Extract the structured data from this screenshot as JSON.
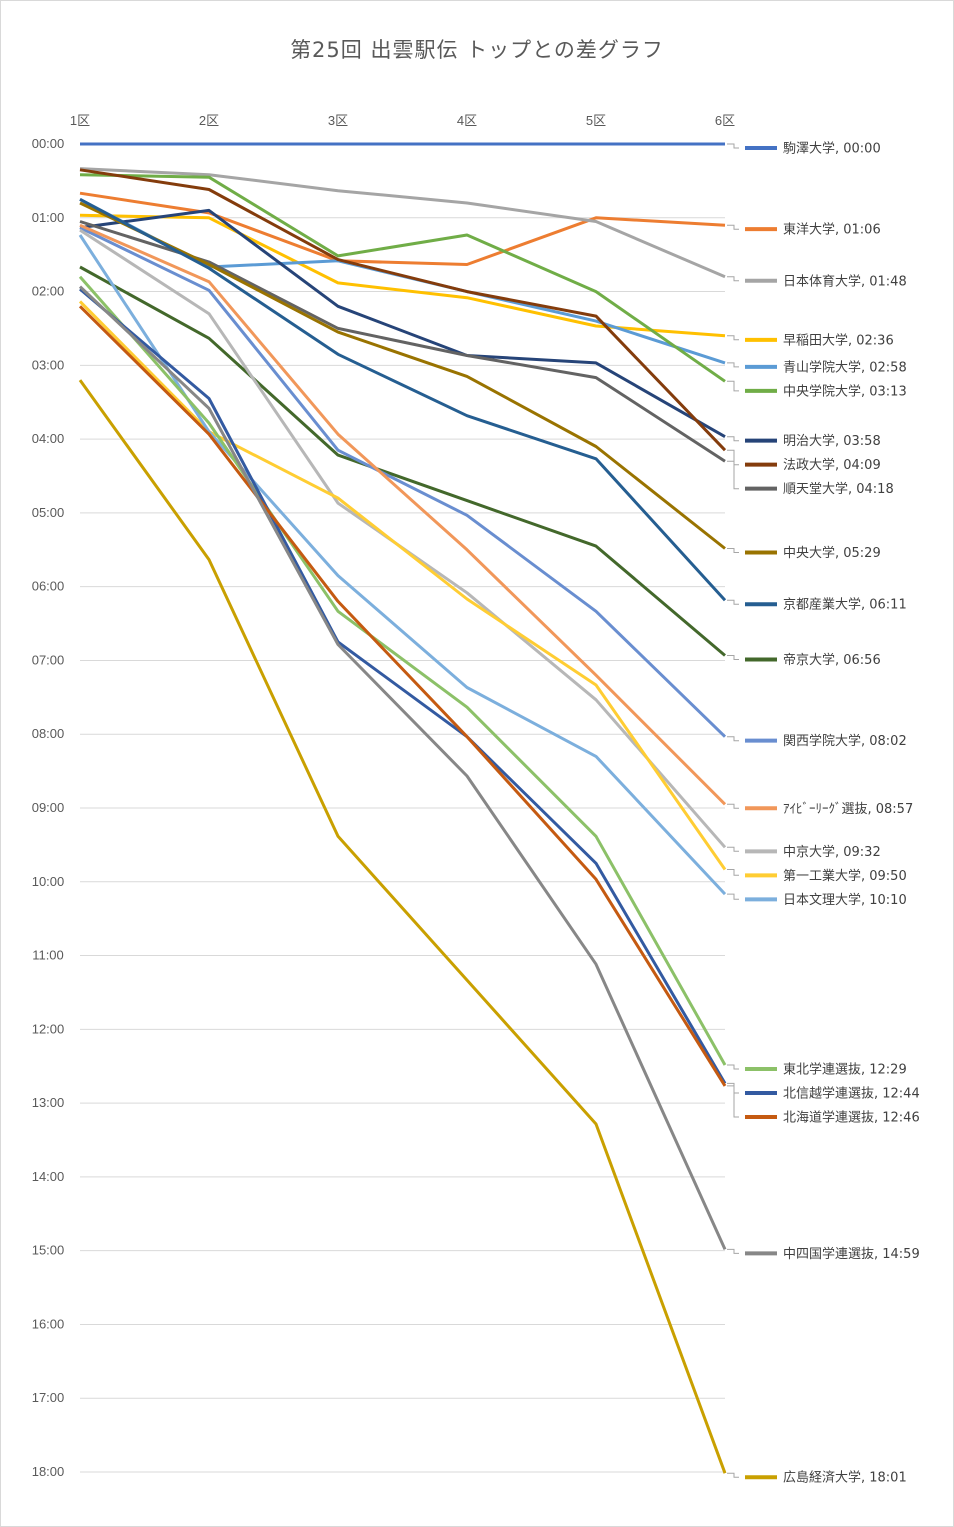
{
  "chart_data": {
    "type": "line",
    "title": "第25回  出雲駅伝  トップとの差グラフ",
    "categories": [
      "1区",
      "2区",
      "3区",
      "4区",
      "5区",
      "6区"
    ],
    "y_ticks": [
      "00:00",
      "01:00",
      "02:00",
      "03:00",
      "04:00",
      "05:00",
      "06:00",
      "07:00",
      "08:00",
      "09:00",
      "10:00",
      "11:00",
      "12:00",
      "13:00",
      "14:00",
      "15:00",
      "16:00",
      "17:00",
      "18:00"
    ],
    "ylim_seconds": [
      0,
      1080
    ],
    "y_reversed": true,
    "x_axis_position": "top",
    "grid": true,
    "legend_position": "right (labels at line ends)",
    "series": [
      {
        "name": "駒澤大学",
        "final": "00:00",
        "color": "#4472c4",
        "values": [
          0,
          0,
          0,
          0,
          0,
          0
        ]
      },
      {
        "name": "東洋大学",
        "final": "01:06",
        "color": "#ed7d31",
        "values": [
          40,
          56,
          95,
          98,
          60,
          66
        ]
      },
      {
        "name": "日本体育大学",
        "final": "01:48",
        "color": "#a5a5a5",
        "values": [
          20,
          25,
          38,
          48,
          63,
          108
        ]
      },
      {
        "name": "早稲田大学",
        "final": "02:36",
        "color": "#ffc000",
        "values": [
          58,
          60,
          113,
          125,
          148,
          156
        ]
      },
      {
        "name": "青山学院大学",
        "final": "02:58",
        "color": "#5b9bd5",
        "values": [
          45,
          100,
          95,
          120,
          144,
          178
        ]
      },
      {
        "name": "中央学院大学",
        "final": "03:13",
        "color": "#70ad47",
        "values": [
          25,
          27,
          91,
          74,
          120,
          193
        ]
      },
      {
        "name": "明治大学",
        "final": "03:58",
        "color": "#264478",
        "values": [
          68,
          54,
          132,
          172,
          178,
          238
        ]
      },
      {
        "name": "法政大学",
        "final": "04:09",
        "color": "#843c0c",
        "values": [
          21,
          37,
          94,
          120,
          140,
          249
        ]
      },
      {
        "name": "順天堂大学",
        "final": "04:18",
        "color": "#636363",
        "values": [
          63,
          96,
          150,
          172,
          190,
          258
        ]
      },
      {
        "name": "中央大学",
        "final": "05:29",
        "color": "#997300",
        "values": [
          48,
          98,
          153,
          189,
          246,
          329
        ]
      },
      {
        "name": "京都産業大学",
        "final": "06:11",
        "color": "#255e91",
        "values": [
          45,
          101,
          171,
          221,
          256,
          371
        ]
      },
      {
        "name": "帝京大学",
        "final": "06:56",
        "color": "#43682b",
        "values": [
          100,
          158,
          253,
          290,
          327,
          416
        ]
      },
      {
        "name": "関西学院大学",
        "final": "08:02",
        "color": "#698ed0",
        "values": [
          68,
          119,
          249,
          302,
          380,
          482
        ]
      },
      {
        "name": "ｱｲﾋﾞｰﾘｰｸﾞ選抜",
        "final": "08:57",
        "color": "#f1975a",
        "values": [
          66,
          112,
          236,
          330,
          432,
          537
        ]
      },
      {
        "name": "中京大学",
        "final": "09:32",
        "color": "#b7b7b7",
        "values": [
          70,
          138,
          292,
          365,
          452,
          572
        ]
      },
      {
        "name": "第一工業大学",
        "final": "09:50",
        "color": "#ffcd33",
        "values": [
          128,
          234,
          288,
          370,
          440,
          590
        ]
      },
      {
        "name": "日本文理大学",
        "final": "10:10",
        "color": "#7cafdd",
        "values": [
          74,
          234,
          351,
          442,
          498,
          610
        ]
      },
      {
        "name": "東北学連選抜",
        "final": "12:29",
        "color": "#8cc168",
        "values": [
          108,
          227,
          380,
          458,
          563,
          749
        ]
      },
      {
        "name": "北信越学連選抜",
        "final": "12:44",
        "color": "#335aa1",
        "values": [
          118,
          207,
          405,
          482,
          585,
          764
        ]
      },
      {
        "name": "北海道学連選抜",
        "final": "12:46",
        "color": "#c55a11",
        "values": [
          132,
          236,
          372,
          482,
          598,
          766
        ]
      },
      {
        "name": "中四国学連選抜",
        "final": "14:59",
        "color": "#878787",
        "values": [
          116,
          215,
          407,
          514,
          667,
          899
        ]
      },
      {
        "name": "広島経済大学",
        "final": "18:01",
        "color": "#c9a000",
        "values": [
          192,
          338,
          563,
          680,
          797,
          1081
        ]
      }
    ]
  }
}
